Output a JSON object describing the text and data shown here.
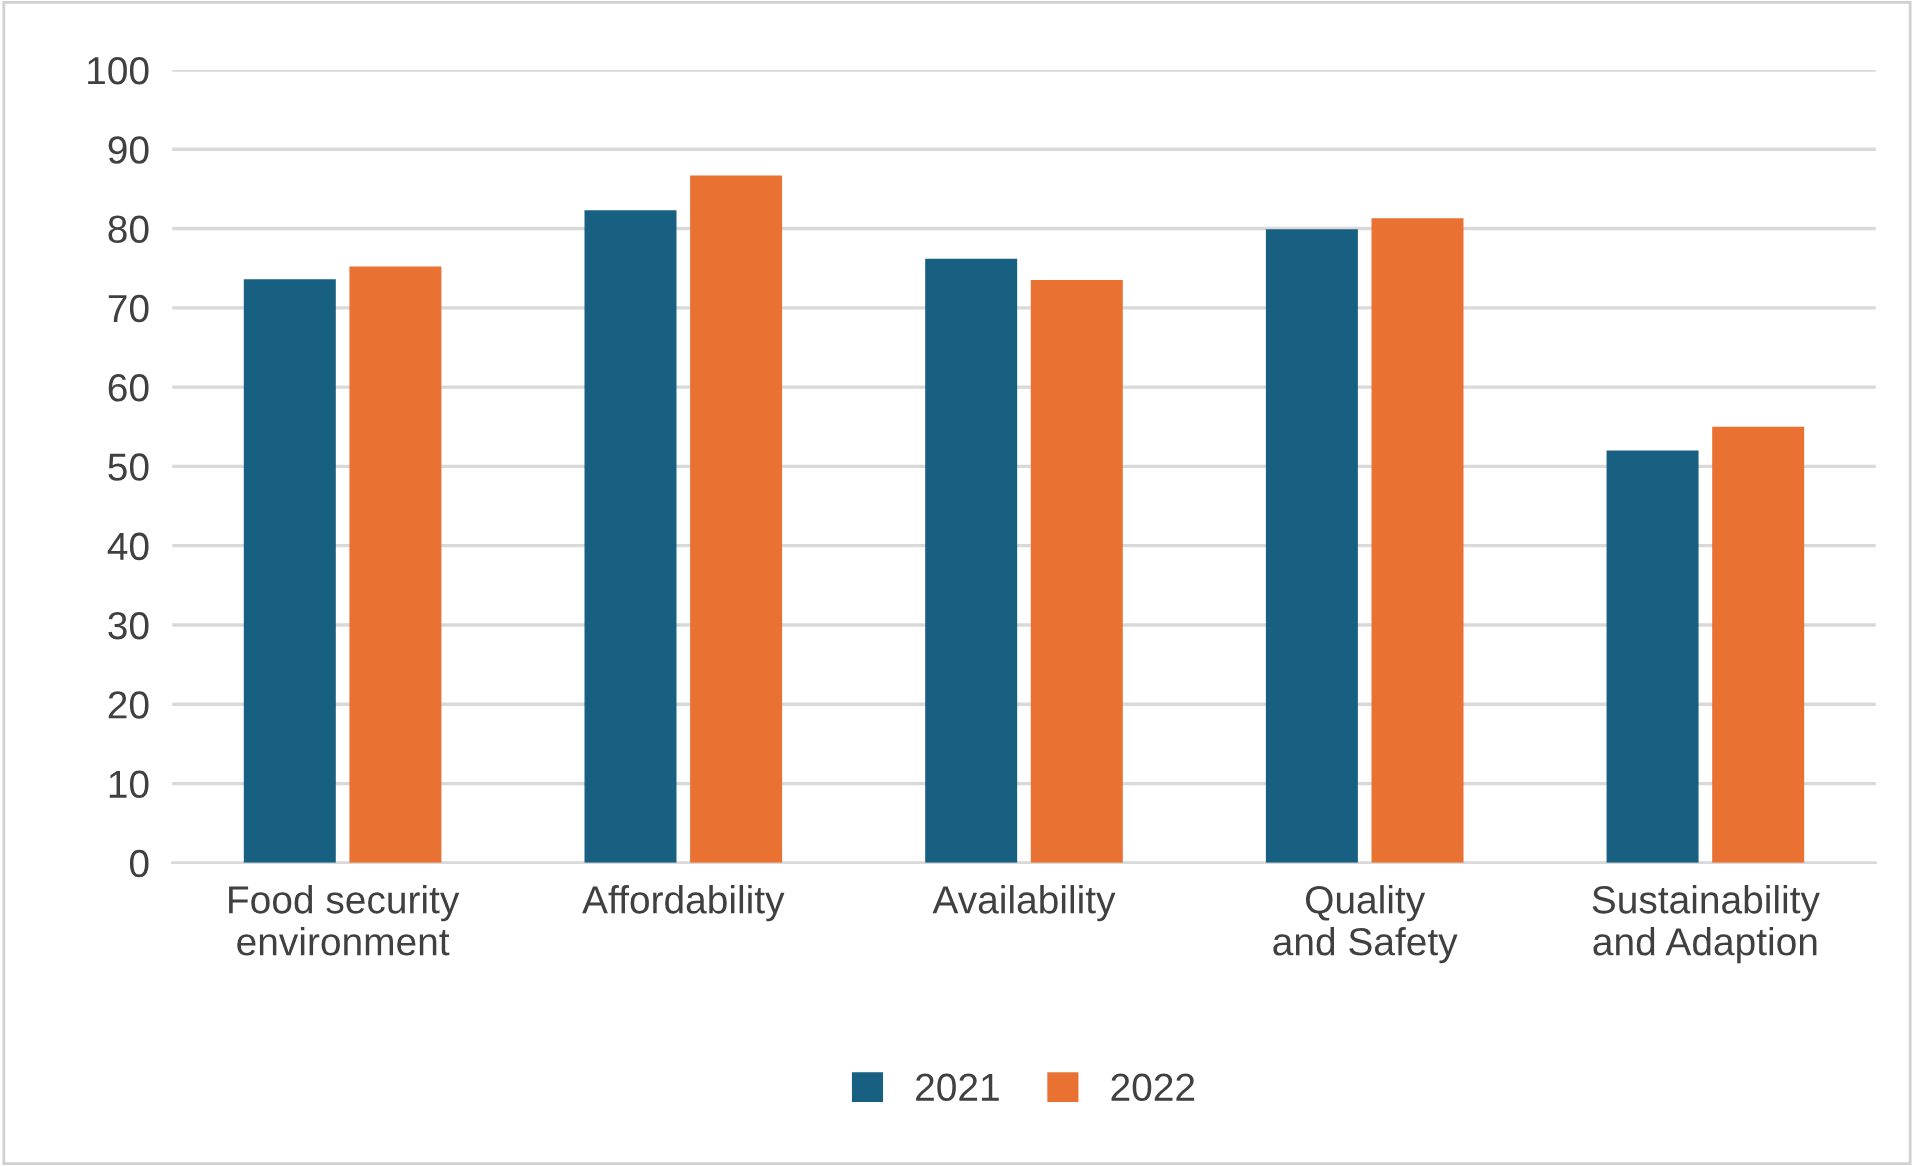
{
  "chart_data": {
    "type": "bar",
    "categories": [
      "Food security environment",
      "Affordability",
      "Availability",
      "Quality and Safety",
      "Sustainability and Adaption"
    ],
    "series": [
      {
        "name": "2021",
        "color": "#176082",
        "values": [
          73.6,
          82.3,
          76.2,
          79.9,
          52.0
        ]
      },
      {
        "name": "2022",
        "color": "#e97132",
        "values": [
          75.2,
          86.7,
          73.5,
          81.3,
          55.0
        ]
      }
    ],
    "ylim": [
      0,
      100
    ],
    "yticks": [
      0,
      10,
      20,
      30,
      40,
      50,
      60,
      70,
      80,
      90,
      100
    ],
    "grid": "y",
    "legend": "bottom"
  }
}
